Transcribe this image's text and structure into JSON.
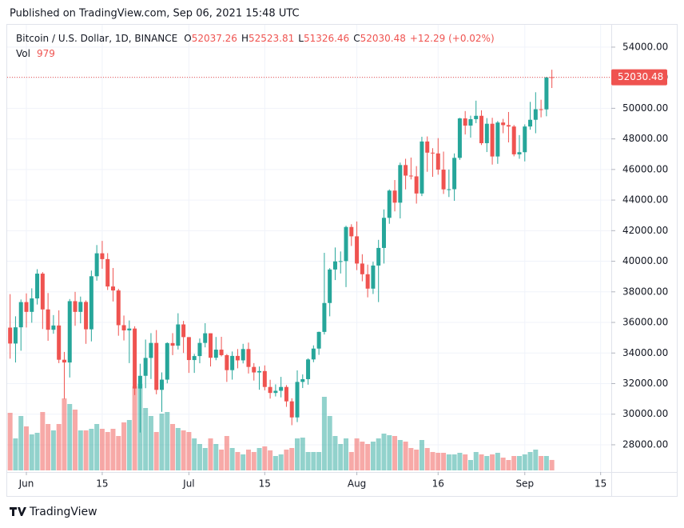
{
  "published": "Published on TradingView.com, Sep 06, 2021 15:48 UTC",
  "brand": "TradingView",
  "chart_data": {
    "type": "candlestick",
    "title": "Bitcoin / U.S. Dollar, 1D, BINANCE",
    "ohlc_labels": [
      "O",
      "H",
      "L",
      "C"
    ],
    "change_label": "+12.29 (+0.02%)",
    "volume_label": "Vol",
    "up_color": "#26a69a",
    "down_color": "#ef5350",
    "grid": true,
    "x": [
      "05-29",
      "05-30",
      "05-31",
      "06-01",
      "06-02",
      "06-03",
      "06-04",
      "06-05",
      "06-06",
      "06-07",
      "06-08",
      "06-09",
      "06-10",
      "06-11",
      "06-12",
      "06-13",
      "06-14",
      "06-15",
      "06-16",
      "06-17",
      "06-18",
      "06-19",
      "06-20",
      "06-21",
      "06-22",
      "06-23",
      "06-24",
      "06-25",
      "06-26",
      "06-27",
      "06-28",
      "06-29",
      "06-30",
      "07-01",
      "07-02",
      "07-03",
      "07-04",
      "07-05",
      "07-06",
      "07-07",
      "07-08",
      "07-09",
      "07-10",
      "07-11",
      "07-12",
      "07-13",
      "07-14",
      "07-15",
      "07-16",
      "07-17",
      "07-18",
      "07-19",
      "07-20",
      "07-21",
      "07-22",
      "07-23",
      "07-24",
      "07-25",
      "07-26",
      "07-27",
      "07-28",
      "07-29",
      "07-30",
      "07-31",
      "08-01",
      "08-02",
      "08-03",
      "08-04",
      "08-05",
      "08-06",
      "08-07",
      "08-08",
      "08-09",
      "08-10",
      "08-11",
      "08-12",
      "08-13",
      "08-14",
      "08-15",
      "08-16",
      "08-17",
      "08-18",
      "08-19",
      "08-20",
      "08-21",
      "08-22",
      "08-23",
      "08-24",
      "08-25",
      "08-26",
      "08-27",
      "08-28",
      "08-29",
      "08-30",
      "08-31",
      "09-01",
      "09-02",
      "09-03",
      "09-04",
      "09-05",
      "09-06"
    ],
    "open": [
      35660,
      34620,
      35680,
      37330,
      36690,
      37570,
      39190,
      36850,
      35520,
      35800,
      33560,
      33380,
      37390,
      36690,
      37340,
      35550,
      39020,
      40520,
      40140,
      38350,
      38090,
      35820,
      35480,
      35600,
      31680,
      32510,
      33680,
      34660,
      31590,
      32260,
      34650,
      34480,
      35870,
      35040,
      33540,
      33800,
      34660,
      35290,
      33690,
      34220,
      33860,
      32880,
      33810,
      33520,
      34260,
      33090,
      32730,
      32820,
      31780,
      31390,
      31530,
      31780,
      30840,
      29790,
      32110,
      32290,
      33580,
      34290,
      35380,
      37270,
      39460,
      39990,
      40010,
      42240,
      41630,
      39850,
      39150,
      38210,
      39720,
      40870,
      42840,
      44620,
      43830,
      46290,
      45600,
      45550,
      44430,
      47830,
      47100,
      47050,
      45990,
      44700,
      44710,
      46760,
      49340,
      48870,
      49290,
      49510,
      47720,
      48990,
      46850,
      49070,
      48900,
      48810,
      46990,
      47130,
      48810,
      49250,
      49940,
      49930,
      52037.26
    ],
    "high": [
      37850,
      36400,
      37500,
      37900,
      38230,
      39480,
      39290,
      37920,
      36480,
      36790,
      34070,
      37530,
      38000,
      37690,
      37440,
      39390,
      41060,
      41330,
      40530,
      39560,
      38200,
      36450,
      36130,
      35750,
      33300,
      34880,
      35300,
      35500,
      32730,
      34700,
      35300,
      36600,
      36100,
      35040,
      33940,
      34950,
      35950,
      35290,
      35050,
      35060,
      33930,
      34100,
      34260,
      34600,
      34680,
      33340,
      33120,
      33190,
      32250,
      31950,
      32440,
      31900,
      31040,
      32860,
      32600,
      33650,
      34500,
      35400,
      40550,
      39550,
      40900,
      40640,
      42320,
      42420,
      42600,
      40460,
      39780,
      39970,
      41400,
      43390,
      44700,
      45310,
      46450,
      46700,
      46780,
      46220,
      48140,
      48160,
      47390,
      48050,
      47170,
      46000,
      47050,
      49380,
      49820,
      49520,
      50500,
      49870,
      49360,
      49380,
      49170,
      49310,
      49760,
      48910,
      48250,
      48950,
      50420,
      51050,
      50560,
      52060,
      52523.81
    ],
    "low": [
      33630,
      33380,
      34150,
      35670,
      35980,
      37170,
      35570,
      34800,
      35260,
      33340,
      31000,
      32400,
      35780,
      35940,
      34600,
      34760,
      38730,
      39510,
      38120,
      37370,
      35130,
      34820,
      33340,
      31250,
      28800,
      31700,
      32300,
      31300,
      30150,
      32020,
      33860,
      34230,
      34000,
      32700,
      32700,
      33330,
      34370,
      33120,
      33530,
      33780,
      32110,
      32260,
      33000,
      33320,
      32660,
      32200,
      31600,
      31560,
      31020,
      31160,
      31100,
      30480,
      29280,
      29480,
      31710,
      31930,
      33400,
      33880,
      35210,
      36400,
      38770,
      39200,
      38310,
      41000,
      39420,
      38690,
      37640,
      37860,
      37330,
      39850,
      42450,
      43260,
      42800,
      44700,
      45350,
      43770,
      44260,
      45850,
      45520,
      45660,
      44400,
      44200,
      43950,
      46630,
      48290,
      48080,
      49030,
      47600,
      47140,
      46320,
      46370,
      48370,
      47770,
      46860,
      46700,
      46530,
      48600,
      48370,
      49410,
      49480,
      51326.46
    ],
    "close": [
      34620,
      35680,
      37330,
      36690,
      37570,
      39190,
      36850,
      35520,
      35800,
      33560,
      33380,
      37390,
      36690,
      37340,
      35550,
      39020,
      40520,
      40140,
      38350,
      38090,
      35820,
      35480,
      35600,
      31680,
      32510,
      33680,
      34660,
      31590,
      32260,
      34650,
      34480,
      35870,
      35040,
      33540,
      33800,
      34660,
      35290,
      33690,
      34220,
      33860,
      32880,
      33810,
      33520,
      34260,
      33090,
      32730,
      32820,
      31780,
      31390,
      31530,
      31780,
      30840,
      29790,
      32110,
      32290,
      33580,
      34290,
      35380,
      37270,
      39460,
      39990,
      40010,
      42240,
      41630,
      39850,
      39150,
      38210,
      39720,
      40870,
      42840,
      44620,
      43830,
      46290,
      45600,
      45550,
      44430,
      47830,
      47100,
      47050,
      45990,
      44700,
      44710,
      46760,
      49340,
      48870,
      49290,
      49510,
      47720,
      48990,
      46850,
      49070,
      48900,
      48810,
      46990,
      47130,
      48810,
      49250,
      49940,
      49930,
      52018.19,
      52030.48
    ],
    "volume": [
      5400,
      3000,
      5100,
      4125,
      3375,
      3525,
      5475,
      4350,
      3750,
      4350,
      6750,
      6225,
      5700,
      3750,
      3750,
      3900,
      4350,
      3900,
      3600,
      3900,
      3225,
      4500,
      4725,
      7875,
      8100,
      5850,
      5100,
      3600,
      5325,
      5475,
      4350,
      3975,
      3750,
      3600,
      3000,
      2475,
      2100,
      3000,
      2475,
      1950,
      3225,
      2100,
      1725,
      1500,
      1950,
      1725,
      2100,
      2250,
      1875,
      1350,
      1500,
      1950,
      2100,
      3000,
      3075,
      1725,
      1725,
      1725,
      6900,
      5100,
      3225,
      2475,
      3000,
      1725,
      3000,
      2700,
      2475,
      2700,
      3000,
      3450,
      3300,
      3225,
      2850,
      2700,
      2100,
      1950,
      2850,
      2100,
      1725,
      1650,
      1650,
      1500,
      1500,
      1650,
      1500,
      975,
      1725,
      1500,
      1350,
      1500,
      1650,
      1200,
      975,
      1350,
      1350,
      1500,
      1725,
      1950,
      1350,
      1350,
      979
    ],
    "ylim": [
      26220,
      55460
    ],
    "yticks": [
      {
        "value": 28000,
        "label": "28000.00"
      },
      {
        "value": 30000,
        "label": "30000.00"
      },
      {
        "value": 32000,
        "label": "32000.00"
      },
      {
        "value": 34000,
        "label": "34000.00"
      },
      {
        "value": 36000,
        "label": "36000.00"
      },
      {
        "value": 38000,
        "label": "38000.00"
      },
      {
        "value": 40000,
        "label": "40000.00"
      },
      {
        "value": 42000,
        "label": "42000.00"
      },
      {
        "value": 44000,
        "label": "44000.00"
      },
      {
        "value": 46000,
        "label": "46000.00"
      },
      {
        "value": 48000,
        "label": "48000.00"
      },
      {
        "value": 50000,
        "label": "50000.00"
      },
      {
        "value": 52000,
        "label": "52000.00"
      },
      {
        "value": 54000,
        "label": "54000.00"
      }
    ],
    "xticks": [
      {
        "value": "06-01",
        "label": "Jun"
      },
      {
        "value": "06-15",
        "label": "15"
      },
      {
        "value": "07-01",
        "label": "Jul"
      },
      {
        "value": "07-15",
        "label": "15"
      },
      {
        "value": "08-01",
        "label": "Aug"
      },
      {
        "value": "08-16",
        "label": "16"
      },
      {
        "value": "09-01",
        "label": "Sep"
      },
      {
        "value": "09-15",
        "label": "15"
      }
    ]
  }
}
